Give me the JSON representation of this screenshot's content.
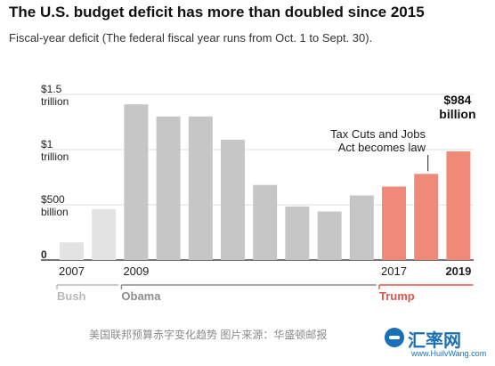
{
  "header": {
    "title": "The U.S. budget deficit has more than doubled since 2015",
    "subtitle": "Fiscal-year deficit (The federal fiscal year runs from Oct. 1 to Sept. 30)."
  },
  "chart_data": {
    "type": "bar",
    "categories": [
      "2007",
      "2008",
      "2009",
      "2010",
      "2011",
      "2012",
      "2013",
      "2014",
      "2015",
      "2016",
      "2017",
      "2018",
      "2019"
    ],
    "values": [
      160,
      460,
      1410,
      1300,
      1300,
      1090,
      680,
      485,
      440,
      585,
      665,
      780,
      984
    ],
    "ylim": [
      0,
      1500
    ],
    "y_ticks": [
      {
        "value": 1500,
        "line1": "$1.5",
        "line2": "trillion"
      },
      {
        "value": 1000,
        "line1": "$1",
        "line2": "trillion"
      },
      {
        "value": 500,
        "line1": "$500",
        "line2": "billion"
      },
      {
        "value": 0,
        "line1": "0",
        "line2": ""
      }
    ],
    "x_tick_labels": [
      {
        "category": "2007",
        "text": "2007"
      },
      {
        "category": "2009",
        "text": "2009"
      },
      {
        "category": "2017",
        "text": "2017"
      },
      {
        "category": "2019",
        "text": "2019"
      }
    ],
    "grid": true,
    "presidencies": [
      {
        "name": "Bush",
        "from": "2007",
        "to": "2008",
        "color": "#e3e3e3",
        "label_color": "#b8b8b8"
      },
      {
        "name": "Obama",
        "from": "2009",
        "to": "2016",
        "color": "#c6c6c6",
        "label_color": "#8c8c8c"
      },
      {
        "name": "Trump",
        "from": "2017",
        "to": "2019",
        "color": "#f08a78",
        "label_color": "#e5544a"
      }
    ],
    "annotations": [
      {
        "category": "2019",
        "line1": "$984",
        "line2": "billion"
      },
      {
        "category": "2018",
        "line1": "Tax Cuts and Jobs",
        "line2": "Act becomes law"
      }
    ]
  },
  "footer": {
    "caption": "美国联邦预算赤字变化趋势 图片来源：华盛顿邮报",
    "watermark_name": "汇率网",
    "watermark_url": "www.HuilvWang.com"
  }
}
